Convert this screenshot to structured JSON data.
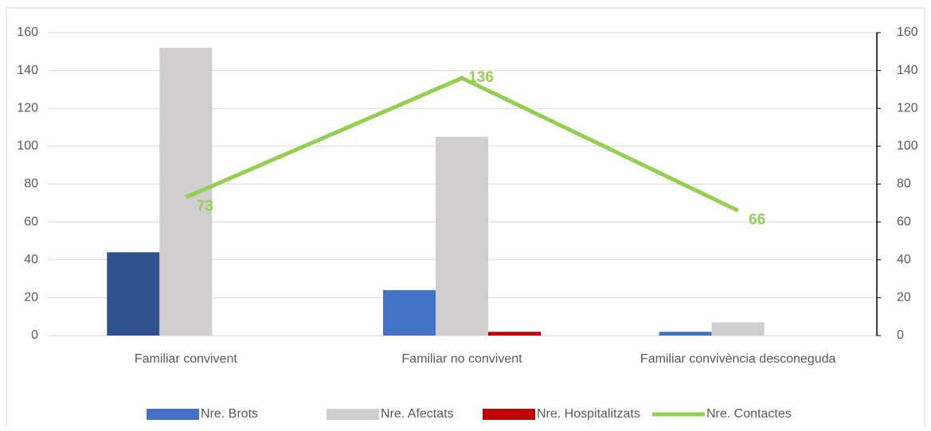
{
  "chart_data": {
    "type": "bar-line",
    "categories": [
      "Familiar convivent",
      "Familiar no convivent",
      "Familiar convivència desconeguda"
    ],
    "series": [
      {
        "name": "Nre. Brots",
        "type": "bar",
        "color": "#4472c4",
        "colors": [
          "#2f528f",
          "#4472c4",
          "#4472c4"
        ],
        "values": [
          44,
          24,
          2
        ]
      },
      {
        "name": "Nre. Afectats",
        "type": "bar",
        "color": "#d0cece",
        "values": [
          152,
          105,
          7
        ]
      },
      {
        "name": "Nre. Hospitalitzats",
        "type": "bar",
        "color": "#c00000",
        "values": [
          0,
          2,
          0
        ]
      },
      {
        "name": "Nre. Contactes",
        "type": "line",
        "axis": "y2",
        "color": "#92d050",
        "values": [
          73,
          136,
          66
        ]
      }
    ],
    "ylim": [
      0,
      160
    ],
    "yticks": [
      0,
      20,
      40,
      60,
      80,
      100,
      120,
      140,
      160
    ],
    "y2lim": [
      0,
      160
    ],
    "y2ticks": [
      0,
      20,
      40,
      60,
      80,
      100,
      120,
      140,
      160
    ],
    "grid": true,
    "legend": "bottom"
  }
}
